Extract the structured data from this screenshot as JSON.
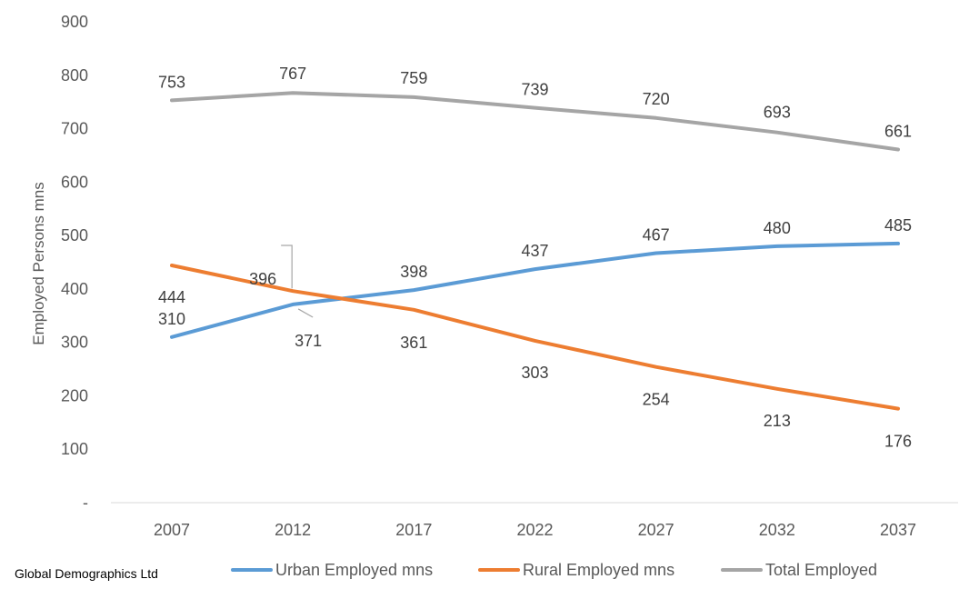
{
  "source_note": "Global Demographics Ltd",
  "colors": {
    "urban": "#5B9BD5",
    "rural": "#ED7D31",
    "total": "#A5A5A5",
    "axis": "#D9D9D9"
  },
  "chart_data": {
    "type": "line",
    "categories": [
      "2007",
      "2012",
      "2017",
      "2022",
      "2027",
      "2032",
      "2037"
    ],
    "ylabel": "Employed Persons mns",
    "xlabel": "",
    "ylim": [
      0,
      900
    ],
    "ytick_labels": [
      "-",
      "100",
      "200",
      "300",
      "400",
      "500",
      "600",
      "700",
      "800",
      "900"
    ],
    "grid": false,
    "legend_position": "bottom",
    "series": [
      {
        "key": "urban",
        "name": "Urban Employed mns",
        "values": [
          310,
          371,
          398,
          437,
          467,
          480,
          485
        ]
      },
      {
        "key": "rural",
        "name": "Rural Employed mns",
        "values": [
          444,
          396,
          361,
          303,
          254,
          213,
          176
        ]
      },
      {
        "key": "total",
        "name": "Total Employed",
        "values": [
          753,
          767,
          759,
          739,
          720,
          693,
          661
        ]
      }
    ]
  }
}
